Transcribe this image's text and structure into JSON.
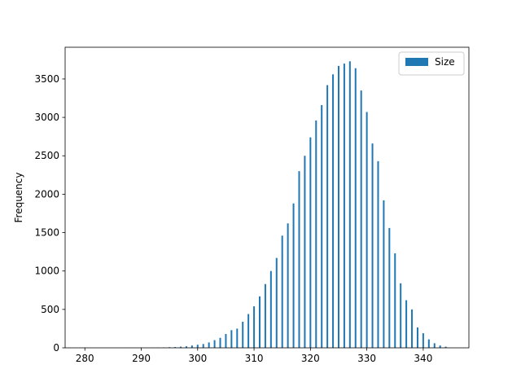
{
  "chart_data": {
    "type": "bar",
    "y_label": "Frequency",
    "color": "#1f77b4",
    "series": [
      {
        "name": "Size",
        "color": "#1f77b4",
        "x": [
          280,
          281,
          282,
          283,
          284,
          285,
          286,
          287,
          288,
          289,
          290,
          291,
          292,
          293,
          294,
          295,
          296,
          297,
          298,
          299,
          300,
          301,
          302,
          303,
          304,
          305,
          306,
          307,
          308,
          309,
          310,
          311,
          312,
          313,
          314,
          315,
          316,
          317,
          318,
          319,
          320,
          321,
          322,
          323,
          324,
          325,
          326,
          327,
          328,
          329,
          330,
          331,
          332,
          333,
          334,
          335,
          336,
          337,
          338,
          339,
          340,
          341,
          342,
          343,
          344
        ],
        "values": [
          2,
          0,
          0,
          0,
          0,
          0,
          0,
          0,
          1,
          1,
          2,
          2,
          3,
          4,
          5,
          8,
          10,
          15,
          20,
          30,
          40,
          50,
          70,
          100,
          130,
          180,
          230,
          250,
          340,
          440,
          540,
          670,
          830,
          1000,
          1170,
          1460,
          1620,
          1880,
          2300,
          2500,
          2740,
          2960,
          3160,
          3420,
          3560,
          3670,
          3700,
          3730,
          3640,
          3350,
          3070,
          2660,
          2430,
          1920,
          1560,
          1230,
          840,
          620,
          500,
          265,
          190,
          110,
          60,
          30,
          15
        ]
      }
    ],
    "xlim": [
      276.5,
      348.1
    ],
    "ylim": [
      0,
      3913
    ],
    "xticks": [
      280,
      290,
      300,
      310,
      320,
      330,
      340
    ],
    "yticks": [
      0,
      500,
      1000,
      1500,
      2000,
      2500,
      3000,
      3500
    ],
    "legend": "upper right"
  }
}
